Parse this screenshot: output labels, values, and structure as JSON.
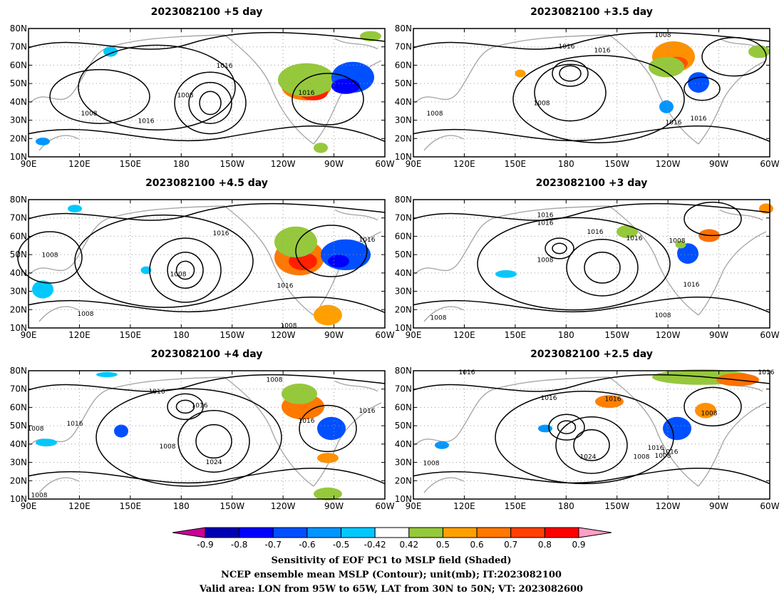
{
  "panels": [
    {
      "title": "2023082100 +5 day",
      "contour_labels": [
        "1016",
        "1008",
        "1008",
        "1016",
        "1016"
      ]
    },
    {
      "title": "2023082100 +3.5 day",
      "contour_labels": [
        "1016",
        "1016",
        "1008",
        "1008",
        "1008",
        "1016",
        "1016"
      ]
    },
    {
      "title": "2023082100 +4.5 day",
      "contour_labels": [
        "1008",
        "1016",
        "1008",
        "1008",
        "1016",
        "1008",
        "1016"
      ]
    },
    {
      "title": "2023082100 +3 day",
      "contour_labels": [
        "1016",
        "1016",
        "1016",
        "1008",
        "1016",
        "1008",
        "1016",
        "1008",
        "1008"
      ]
    },
    {
      "title": "2023082100 +4 day",
      "contour_labels": [
        "1016",
        "1016",
        "1008",
        "1016",
        "1008",
        "1016",
        "1024",
        "1016",
        "1008",
        "1008"
      ]
    },
    {
      "title": "2023082100 +2.5 day",
      "contour_labels": [
        "1016",
        "1016",
        "1016",
        "1016",
        "1008",
        "1024",
        "1008",
        "1016",
        "1016",
        "1008",
        "1008"
      ]
    }
  ],
  "axes": {
    "lat_ticks": [
      "80N",
      "70N",
      "60N",
      "50N",
      "40N",
      "30N",
      "20N",
      "10N"
    ],
    "lon_ticks": [
      "90E",
      "120E",
      "150E",
      "180",
      "150W",
      "120W",
      "90W",
      "60W"
    ],
    "lat_range": [
      10,
      80
    ],
    "lon_range_east": [
      90,
      300
    ]
  },
  "colorbar": {
    "labels": [
      "-0.9",
      "-0.8",
      "-0.7",
      "-0.6",
      "-0.5",
      "-0.42",
      "0.42",
      "0.5",
      "0.6",
      "0.7",
      "0.8",
      "0.9"
    ],
    "colors": [
      "#cc0099",
      "#0000b4",
      "#0000ff",
      "#0050ff",
      "#0096ff",
      "#00c8ff",
      "#ffffff",
      "#96c83c",
      "#ffa000",
      "#ff7800",
      "#ff4000",
      "#ff0000",
      "#ffa0c8"
    ]
  },
  "caption": {
    "line1": "Sensitivity of EOF PC1 to MSLP field (Shaded)",
    "line2": "NCEP ensemble mean MSLP (Contour); unit(mb); IT:2023082100",
    "line3": "Valid area: LON from 95W to 65W, LAT from 30N to 50N; VT: 2023082600"
  }
}
